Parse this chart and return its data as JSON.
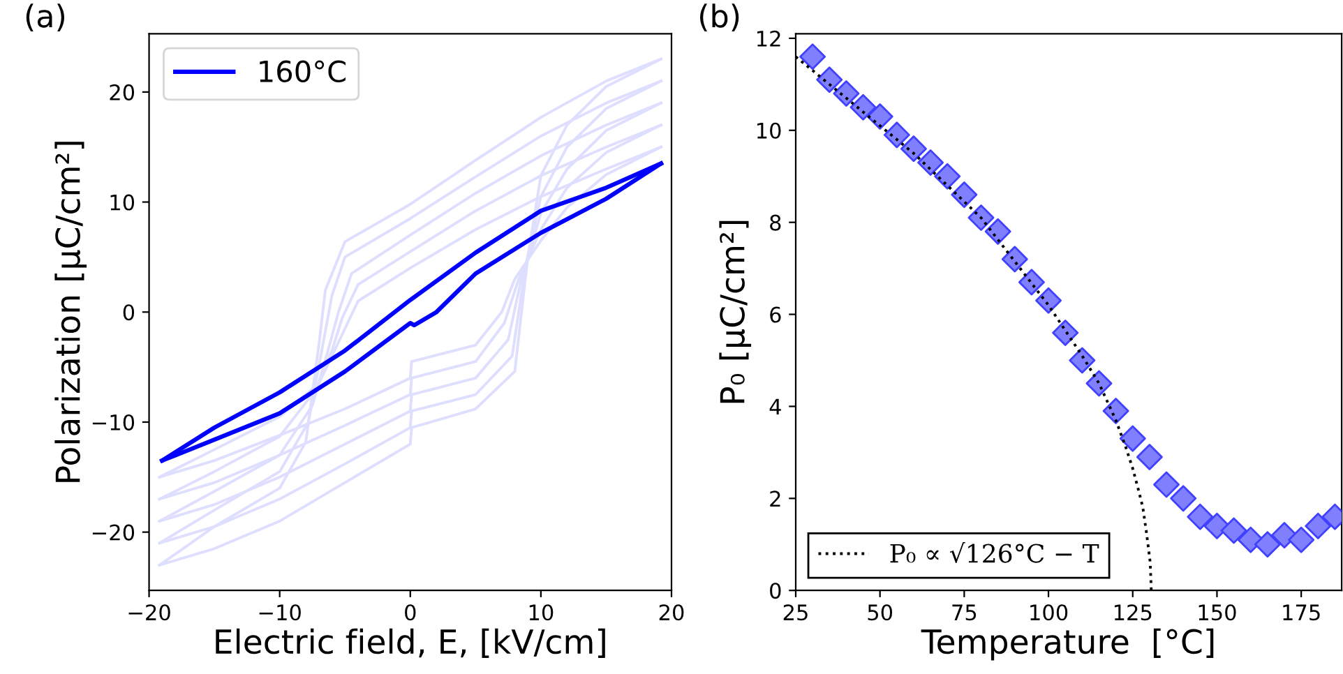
{
  "chart_data": [
    {
      "type": "line",
      "title": "(a)",
      "xlabel": "Electric field, E, [kV/cm]",
      "ylabel": "Polarization [μC/cm²]",
      "xlim": [
        -20,
        20
      ],
      "ylim": [
        -25.3,
        25.3
      ],
      "xticks": [
        {
          "value": -20,
          "label": "−20"
        },
        {
          "value": -10,
          "label": "−10"
        },
        0,
        10,
        20
      ],
      "yticks": [
        {
          "value": -20,
          "label": "−20"
        },
        {
          "value": -10,
          "label": "−10"
        },
        0,
        10,
        20
      ],
      "legend": "top left",
      "grid": false,
      "series": [
        {
          "color": "#dedeff",
          "x": [
            -19.2,
            -15,
            -10,
            -5,
            0,
            0.1,
            5,
            8,
            9,
            10,
            12,
            15,
            19.2
          ],
          "values": [
            -23,
            -21.5,
            -19,
            -15.5,
            -12,
            -10.5,
            -8.8,
            -5.4,
            5,
            12.4,
            17,
            20.5,
            23
          ]
        },
        {
          "color": "#dedeff",
          "x": [
            -19.2,
            -15,
            -10,
            -8,
            -7,
            -6.5,
            -5,
            0,
            5,
            10,
            15,
            19.2
          ],
          "values": [
            -23,
            -19.5,
            -16,
            -11.8,
            -3,
            2,
            6.4,
            9.8,
            13.8,
            17.7,
            21,
            23
          ]
        },
        {
          "color": "#dedeff",
          "x": [
            -19.2,
            -15,
            -10,
            -5,
            0,
            0.1,
            5,
            7.8,
            8.8,
            10,
            12,
            15,
            19.2
          ],
          "values": [
            -21,
            -19.5,
            -17,
            -13.8,
            -10.5,
            -9,
            -7.5,
            -4,
            4,
            10.5,
            15,
            18.5,
            21
          ]
        },
        {
          "color": "#dedeff",
          "x": [
            -19.2,
            -15,
            -10,
            -7.8,
            -6.7,
            -6,
            -5,
            0,
            5,
            10,
            15,
            19.2
          ],
          "values": [
            -21,
            -18,
            -14.5,
            -10,
            -3,
            1.5,
            5,
            8.5,
            12.3,
            16,
            19,
            21
          ]
        },
        {
          "color": "#dedeff",
          "x": [
            -19.2,
            -15,
            -10,
            -5,
            0,
            0.1,
            5,
            7.5,
            8.5,
            10,
            12,
            15,
            19.2
          ],
          "values": [
            -19,
            -17.5,
            -15,
            -12,
            -9,
            -7.5,
            -6,
            -2.5,
            3,
            9,
            13,
            16.5,
            19
          ]
        },
        {
          "color": "#dedeff",
          "x": [
            -19.2,
            -15,
            -10,
            -7.5,
            -6.3,
            -5.5,
            -4.5,
            0,
            5,
            10,
            15,
            19.2
          ],
          "values": [
            -19,
            -16.3,
            -13,
            -8.5,
            -3.5,
            0,
            3.5,
            7,
            10.8,
            14.2,
            17,
            19
          ]
        },
        {
          "color": "#dedeff",
          "x": [
            -19.2,
            -15,
            -10,
            -5,
            0,
            0.1,
            5,
            7.2,
            8.3,
            10,
            12,
            15,
            19.2
          ],
          "values": [
            -17,
            -15.5,
            -13,
            -10.3,
            -7.5,
            -6,
            -4.5,
            -1,
            3,
            7.5,
            11.3,
            14.5,
            17
          ]
        },
        {
          "color": "#dedeff",
          "x": [
            -19.2,
            -15,
            -10,
            -7.2,
            -6,
            -5.2,
            -4,
            0,
            5,
            10,
            15,
            19.2
          ],
          "values": [
            -17,
            -14.5,
            -11.3,
            -7,
            -3.5,
            -0.5,
            2.5,
            5.5,
            9.2,
            12.4,
            15,
            17
          ]
        },
        {
          "color": "#dedeff",
          "x": [
            -19.2,
            -15,
            -10,
            -5,
            0,
            0.1,
            5,
            7,
            8,
            10,
            12,
            15,
            19.2
          ],
          "values": [
            -15,
            -13.5,
            -11.2,
            -8.8,
            -6,
            -4.5,
            -3,
            0,
            3,
            6.5,
            9.5,
            12.5,
            15
          ]
        },
        {
          "color": "#dedeff",
          "x": [
            -19.2,
            -15,
            -10,
            -7,
            -6,
            -5,
            -4,
            0,
            5,
            10,
            15,
            19.2
          ],
          "values": [
            -15,
            -12.5,
            -9.5,
            -6.5,
            -4,
            -1.5,
            1,
            4,
            7.5,
            10.5,
            13,
            15
          ]
        },
        {
          "name": "160°C",
          "color": "#0000ff",
          "x": [
            -19,
            -15,
            -10,
            -5,
            0,
            0.3,
            2,
            5,
            10,
            15,
            19.2
          ],
          "values": [
            -13.5,
            -11.6,
            -9.2,
            -5.4,
            -1.0,
            -1.2,
            0,
            3.5,
            7.2,
            10.3,
            13.5
          ]
        },
        {
          "color": "#0000ff",
          "x": [
            -19,
            -15,
            -10,
            -5,
            0,
            5,
            10,
            15,
            19.2
          ],
          "values": [
            -13.5,
            -10.5,
            -7.3,
            -3.5,
            1.1,
            5.4,
            9.2,
            11.3,
            13.5
          ]
        }
      ]
    },
    {
      "type": "scatter",
      "title": "(b)",
      "xlabel": "Temperature  [°C]",
      "ylabel": "P₀ [μC/cm²]",
      "xlim": [
        25,
        187
      ],
      "ylim": [
        0,
        12.1
      ],
      "xticks": [
        25,
        50,
        75,
        100,
        125,
        150,
        175
      ],
      "yticks": [
        0,
        2,
        4,
        6,
        8,
        10,
        12
      ],
      "legend": "bottom left",
      "grid": false,
      "series": [
        {
          "type": "line",
          "name": "P₀ ∝ √126°C − T",
          "color": "#000000",
          "line_style": "dotted",
          "marker": "none",
          "x": [
            25,
            40,
            60,
            80,
            100,
            110,
            115,
            120,
            123,
            125,
            127,
            128,
            129,
            129.7,
            130.2,
            130.5
          ],
          "values": [
            11.6,
            10.7,
            9.5,
            8.1,
            6.2,
            5.1,
            4.5,
            3.7,
            3.1,
            2.65,
            2.1,
            1.8,
            1.3,
            0.9,
            0.6,
            0.0
          ]
        },
        {
          "type": "scatter",
          "color": "#8080ff",
          "marker": "diamond",
          "x": [
            30,
            35,
            40,
            45,
            50,
            55,
            60,
            65,
            70,
            75,
            80,
            85,
            90,
            95,
            100,
            105,
            110,
            115,
            120,
            125,
            130,
            135,
            140,
            145,
            150,
            155,
            160,
            165,
            170,
            175,
            180,
            185
          ],
          "values": [
            11.6,
            11.1,
            10.8,
            10.5,
            10.3,
            9.9,
            9.6,
            9.3,
            9.0,
            8.6,
            8.1,
            7.8,
            7.2,
            6.7,
            6.3,
            5.6,
            5.0,
            4.5,
            3.9,
            3.3,
            2.9,
            2.3,
            2.0,
            1.6,
            1.4,
            1.3,
            1.1,
            1.0,
            1.2,
            1.1,
            1.4,
            1.6
          ]
        }
      ]
    }
  ]
}
